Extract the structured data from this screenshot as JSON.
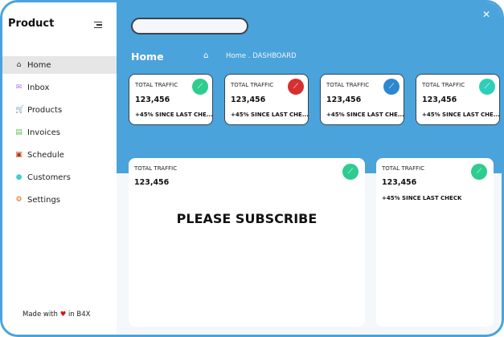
{
  "sidebar": {
    "title": "Product",
    "items": [
      {
        "label": "Home",
        "icon": "home-icon",
        "color": "#1a2a4a",
        "glyph": "⌂"
      },
      {
        "label": "Inbox",
        "icon": "mail-icon",
        "color": "#b070e0",
        "glyph": "✉"
      },
      {
        "label": "Products",
        "icon": "cart-icon",
        "color": "#c010c0",
        "glyph": "🛒"
      },
      {
        "label": "Invoices",
        "icon": "invoice-icon",
        "color": "#60c050",
        "glyph": "▤"
      },
      {
        "label": "Schedule",
        "icon": "calendar-icon",
        "color": "#b83a10",
        "glyph": "▣"
      },
      {
        "label": "Customers",
        "icon": "person-icon",
        "color": "#40d0d0",
        "glyph": "●"
      },
      {
        "label": "Settings",
        "icon": "gear-icon",
        "color": "#e06010",
        "glyph": "⚙"
      }
    ],
    "footer": {
      "prefix": "Made with",
      "suffix": "in B4X"
    }
  },
  "header": {
    "search_value": "",
    "title": "Home",
    "breadcrumb": "Home . DASHBOARD"
  },
  "cards": [
    {
      "title": "TOTAL TRAFFIC",
      "value": "123,456",
      "sub": "+45% SINCE LAST CHE...",
      "color": "#2ecc8f"
    },
    {
      "title": "TOTAL TRAFFIC",
      "value": "123,456",
      "sub": "+45% SINCE LAST CHE...",
      "color": "#d63031"
    },
    {
      "title": "TOTAL TRAFFIC",
      "value": "123,456",
      "sub": "+45% SINCE LAST CHE...",
      "color": "#2e86d0"
    },
    {
      "title": "TOTAL TRAFFIC",
      "value": "123,456",
      "sub": "+45% SINCE LAST CHE...",
      "color": "#2ecfb8"
    }
  ],
  "big_cards": [
    {
      "title": "TOTAL TRAFFIC",
      "value": "123,456",
      "message": "PLEASE SUBSCRIBE",
      "color": "#2ecc8f"
    },
    {
      "title": "TOTAL TRAFFIC",
      "value": "123,456",
      "sub": "+45% SINCE LAST CHECK",
      "color": "#2ecc8f"
    }
  ]
}
